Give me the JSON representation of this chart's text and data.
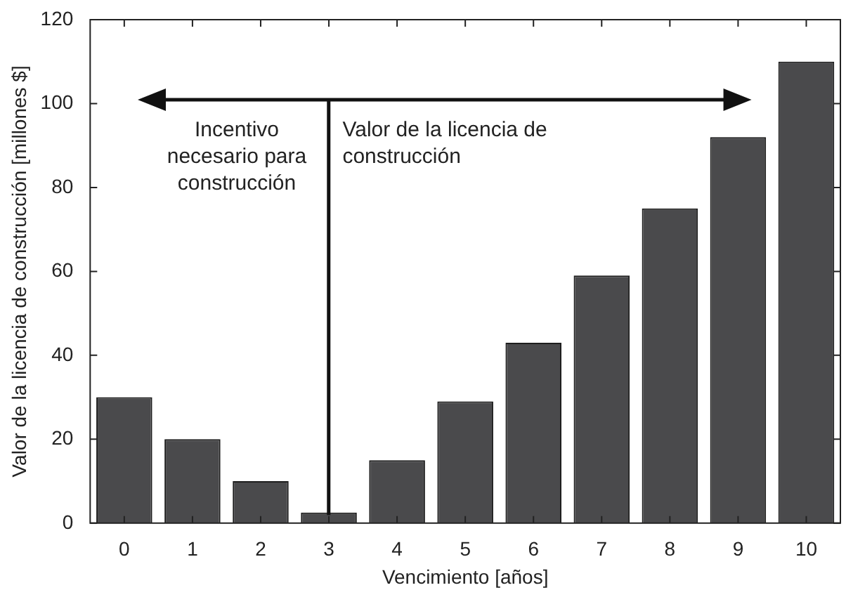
{
  "chart_data": {
    "type": "bar",
    "xlabel": "Vencimiento [años]",
    "ylabel": "Valor de la licencia de construcción [millones $]",
    "categories": [
      "0",
      "1",
      "2",
      "3",
      "4",
      "5",
      "6",
      "7",
      "8",
      "9",
      "10"
    ],
    "values": [
      30,
      20,
      10,
      2.5,
      15,
      29,
      43,
      59,
      75,
      92,
      110
    ],
    "color": "#4a4a4c",
    "ylim": [
      0,
      120
    ],
    "yticks": [
      0,
      20,
      40,
      60,
      80,
      100,
      120
    ],
    "legend": false,
    "annotations": [
      "Incentivo necesario para construcción",
      "Valor de la licencia de construcción"
    ]
  }
}
